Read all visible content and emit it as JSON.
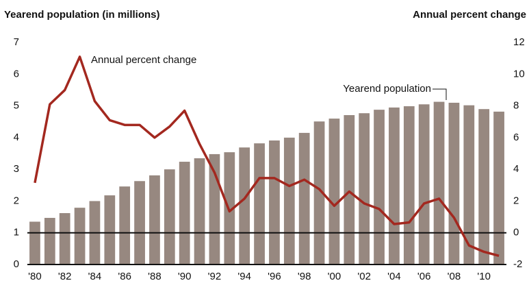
{
  "chart_data": {
    "type": "bar_line",
    "title": "Yearend population (in millions)",
    "y2_title": "Annual percent change",
    "categories": [
      "'80",
      null,
      "'82",
      null,
      "'84",
      null,
      "'86",
      null,
      "'88",
      null,
      "'90",
      null,
      "'92",
      null,
      "'94",
      null,
      "'96",
      null,
      "'98",
      null,
      "'00",
      null,
      "'02",
      null,
      "'04",
      null,
      "'06",
      null,
      "'08",
      null,
      "'10",
      null
    ],
    "series": [
      {
        "name": "Yearend population",
        "type": "bar",
        "color": "#978880",
        "values": [
          1.35,
          1.47,
          1.62,
          1.79,
          2.0,
          2.18,
          2.46,
          2.63,
          2.81,
          3.0,
          3.24,
          3.35,
          3.48,
          3.54,
          3.69,
          3.82,
          3.91,
          4.0,
          4.15,
          4.51,
          4.6,
          4.71,
          4.77,
          4.88,
          4.95,
          4.99,
          5.05,
          5.13,
          5.1,
          5.02,
          4.9,
          4.82
        ]
      },
      {
        "name": "Annual percent change",
        "type": "line",
        "axis": "y2",
        "color": "#a3281f",
        "values": [
          3.15,
          8.1,
          9.0,
          11.1,
          8.3,
          7.1,
          6.8,
          6.8,
          6.0,
          6.7,
          7.7,
          5.6,
          3.8,
          1.35,
          2.15,
          3.45,
          3.45,
          2.95,
          3.35,
          2.75,
          1.7,
          2.6,
          1.85,
          1.5,
          0.55,
          0.65,
          1.85,
          2.15,
          0.95,
          -0.8,
          -1.2,
          -1.45
        ]
      }
    ],
    "ylim": [
      0,
      7
    ],
    "yticks": [
      0,
      1,
      2,
      3,
      4,
      5,
      6,
      7
    ],
    "y2lim": [
      -2,
      12
    ],
    "y2ticks": [
      -2,
      0,
      2,
      4,
      6,
      8,
      10,
      12
    ]
  }
}
